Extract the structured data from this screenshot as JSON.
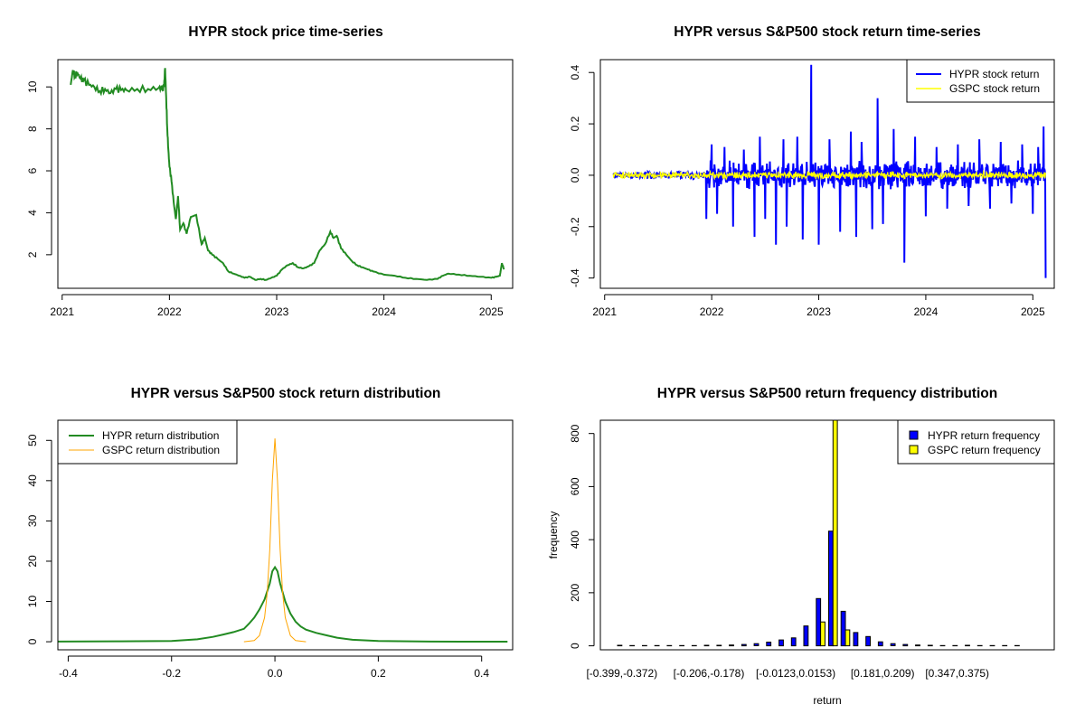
{
  "colors": {
    "hypr_price": "#228B22",
    "hypr_return": "#0000FF",
    "gspc_return": "#FFFF00",
    "hypr_density": "#228B22",
    "gspc_density": "#FFA500",
    "hypr_bar": "#0000FF",
    "gspc_bar": "#FFFF00"
  },
  "chart_data": [
    {
      "id": "price",
      "type": "line",
      "title": "HYPR stock price time-series",
      "xlabel": "",
      "ylabel": "",
      "xlim": [
        2020.96,
        2025.2
      ],
      "ylim": [
        0.4,
        11.3
      ],
      "xticks": [
        2021,
        2022,
        2023,
        2024,
        2025
      ],
      "xtick_labels": [
        "2021",
        "2022",
        "2023",
        "2024",
        "2025"
      ],
      "yticks": [
        2,
        4,
        6,
        8,
        10
      ],
      "ytick_labels": [
        "2",
        "4",
        "6",
        "8",
        "10"
      ],
      "series": [
        {
          "x": [
            2021.08,
            2021.1,
            2021.12,
            2021.14,
            2021.17,
            2021.2,
            2021.25,
            2021.3,
            2021.35,
            2021.4,
            2021.45,
            2021.5,
            2021.55,
            2021.6,
            2021.7,
            2021.8,
            2021.9,
            2021.93,
            2021.95,
            2021.96,
            2021.97,
            2021.98,
            2021.99,
            2022.0,
            2022.02,
            2022.04,
            2022.06,
            2022.08,
            2022.1,
            2022.13,
            2022.16,
            2022.2,
            2022.25,
            2022.3,
            2022.33,
            2022.36,
            2022.4,
            2022.45,
            2022.5,
            2022.55,
            2022.6,
            2022.65,
            2022.7,
            2022.75,
            2022.8,
            2022.85,
            2022.9,
            2022.95,
            2023.0,
            2023.05,
            2023.1,
            2023.15,
            2023.2,
            2023.25,
            2023.3,
            2023.35,
            2023.4,
            2023.45,
            2023.5,
            2023.53,
            2023.56,
            2023.6,
            2023.65,
            2023.7,
            2023.75,
            2023.8,
            2023.85,
            2023.9,
            2024.0,
            2024.1,
            2024.2,
            2024.3,
            2024.4,
            2024.5,
            2024.55,
            2024.6,
            2024.7,
            2024.8,
            2024.9,
            2025.0,
            2025.05,
            2025.08,
            2025.1,
            2025.12
          ],
          "y": [
            10.1,
            10.8,
            10.5,
            10.7,
            10.4,
            10.3,
            10.1,
            10.0,
            9.8,
            9.9,
            9.7,
            9.9,
            9.85,
            9.85,
            9.9,
            9.9,
            9.95,
            9.9,
            10.0,
            10.9,
            9.5,
            8.0,
            7.0,
            6.2,
            5.5,
            4.5,
            3.7,
            4.8,
            3.2,
            3.5,
            3.0,
            3.8,
            3.9,
            2.5,
            2.8,
            2.2,
            2.0,
            1.8,
            1.6,
            1.2,
            1.1,
            1.0,
            0.9,
            0.95,
            0.8,
            0.85,
            0.8,
            0.9,
            1.0,
            1.3,
            1.5,
            1.6,
            1.4,
            1.35,
            1.45,
            1.6,
            2.2,
            2.5,
            3.1,
            2.8,
            2.9,
            2.3,
            2.0,
            1.7,
            1.5,
            1.4,
            1.3,
            1.2,
            1.05,
            1.0,
            0.9,
            0.85,
            0.8,
            0.85,
            1.0,
            1.1,
            1.05,
            1.0,
            0.95,
            0.9,
            0.95,
            1.0,
            1.6,
            1.3
          ]
        }
      ]
    },
    {
      "id": "returns",
      "type": "line",
      "title": "HYPR versus S&P500 stock return time-series",
      "xlabel": "",
      "ylabel": "",
      "xlim": [
        2020.96,
        2025.2
      ],
      "ylim": [
        -0.44,
        0.45
      ],
      "xticks": [
        2021,
        2022,
        2023,
        2024,
        2025
      ],
      "xtick_labels": [
        "2021",
        "2022",
        "2023",
        "2024",
        "2025"
      ],
      "yticks": [
        -0.4,
        -0.2,
        0.0,
        0.2,
        0.4
      ],
      "ytick_labels": [
        "-0.4",
        "-0.2",
        "0.0",
        "0.2",
        "0.4"
      ],
      "legend": {
        "position": "top-right",
        "entries": [
          {
            "label": "HYPR stock return",
            "color": "#0000FF"
          },
          {
            "label": "GSPC stock return",
            "color": "#FFFF00"
          }
        ]
      },
      "spikes": {
        "x": [
          2021.95,
          2022.0,
          2022.05,
          2022.12,
          2022.2,
          2022.3,
          2022.4,
          2022.45,
          2022.5,
          2022.6,
          2022.67,
          2022.7,
          2022.8,
          2022.85,
          2022.93,
          2023.0,
          2023.1,
          2023.2,
          2023.3,
          2023.35,
          2023.4,
          2023.5,
          2023.55,
          2023.6,
          2023.7,
          2023.8,
          2023.9,
          2024.0,
          2024.1,
          2024.2,
          2024.3,
          2024.4,
          2024.5,
          2024.6,
          2024.7,
          2024.8,
          2024.9,
          2025.0,
          2025.05,
          2025.1,
          2025.12
        ],
        "y": [
          -0.17,
          0.12,
          -0.15,
          0.11,
          -0.2,
          0.1,
          -0.24,
          0.15,
          -0.17,
          -0.27,
          0.14,
          -0.2,
          0.15,
          -0.25,
          0.43,
          -0.27,
          0.14,
          -0.22,
          0.17,
          -0.24,
          0.13,
          -0.21,
          0.3,
          -0.19,
          0.18,
          -0.34,
          0.15,
          -0.16,
          0.11,
          -0.13,
          0.12,
          -0.12,
          0.14,
          -0.13,
          0.13,
          -0.11,
          0.12,
          -0.15,
          0.11,
          0.19,
          -0.4
        ]
      },
      "note": "Daily return series drawn as dense noise around 0; HYPR amplitude ~0.01 in 2021, ~0.05 from 2022; GSPC amplitude ~0.01 throughout."
    },
    {
      "id": "density",
      "type": "line",
      "title": "HYPR versus S&P500 stock return distribution",
      "xlabel": "",
      "ylabel": "",
      "xlim": [
        -0.42,
        0.46
      ],
      "ylim": [
        -2,
        55
      ],
      "xticks": [
        -0.4,
        -0.2,
        0.0,
        0.2,
        0.4
      ],
      "xtick_labels": [
        "-0.4",
        "-0.2",
        "0.0",
        "0.2",
        "0.4"
      ],
      "yticks": [
        0,
        10,
        20,
        30,
        40,
        50
      ],
      "ytick_labels": [
        "0",
        "10",
        "20",
        "30",
        "40",
        "50"
      ],
      "legend": {
        "position": "top-left",
        "entries": [
          {
            "label": "HYPR return distribution",
            "color": "#228B22"
          },
          {
            "label": "GSPC return distribution",
            "color": "#FFA500"
          }
        ]
      },
      "series": [
        {
          "name": "HYPR return distribution",
          "x": [
            -0.42,
            -0.3,
            -0.2,
            -0.15,
            -0.12,
            -0.1,
            -0.08,
            -0.06,
            -0.05,
            -0.04,
            -0.03,
            -0.02,
            -0.01,
            -0.005,
            0.0,
            0.005,
            0.01,
            0.02,
            0.03,
            0.04,
            0.05,
            0.06,
            0.08,
            0.1,
            0.12,
            0.15,
            0.2,
            0.3,
            0.45
          ],
          "y": [
            0.05,
            0.1,
            0.2,
            0.6,
            1.2,
            1.8,
            2.4,
            3.2,
            4.5,
            6.0,
            8.0,
            10.5,
            14.5,
            17.5,
            18.5,
            17.5,
            14.5,
            10.0,
            7.0,
            5.0,
            3.8,
            3.0,
            2.2,
            1.6,
            1.0,
            0.5,
            0.2,
            0.05,
            0.02
          ]
        },
        {
          "name": "GSPC return distribution",
          "x": [
            -0.06,
            -0.04,
            -0.03,
            -0.02,
            -0.015,
            -0.01,
            -0.005,
            0.0,
            0.005,
            0.01,
            0.015,
            0.02,
            0.03,
            0.04,
            0.06
          ],
          "y": [
            0.0,
            0.3,
            1.5,
            6.0,
            12.0,
            23.0,
            40.0,
            50.5,
            40.0,
            23.0,
            12.0,
            6.0,
            1.5,
            0.3,
            0.0
          ]
        }
      ]
    },
    {
      "id": "frequency",
      "type": "bar",
      "title": "HYPR versus S&P500 return frequency distribution",
      "xlabel": "return",
      "ylabel": "frequency",
      "ylim": [
        -15,
        850
      ],
      "yticks": [
        0,
        200,
        400,
        600,
        800
      ],
      "ytick_labels": [
        "0",
        "200",
        "400",
        "600",
        "800"
      ],
      "category_tick_labels": [
        "[-0.399,-0.372)",
        "[-0.206,-0.178)",
        "[-0.0123,0.0153)",
        "[0.181,0.209)",
        "[0.347,0.375)"
      ],
      "legend": {
        "position": "top-right",
        "entries": [
          {
            "label": "HYPR return frequency",
            "color": "#0000FF"
          },
          {
            "label": "GSPC return frequency",
            "color": "#FFFF00"
          }
        ]
      },
      "series": [
        {
          "name": "HYPR return frequency",
          "values": [
            2,
            1,
            1,
            1,
            1,
            1,
            1,
            2,
            2,
            3,
            5,
            8,
            14,
            22,
            30,
            75,
            178,
            432,
            130,
            50,
            35,
            15,
            8,
            5,
            3,
            2,
            1,
            1,
            2,
            1,
            1,
            1,
            1,
            0
          ]
        },
        {
          "name": "GSPC return frequency",
          "values": [
            0,
            0,
            0,
            0,
            0,
            0,
            0,
            0,
            0,
            0,
            0,
            0,
            0,
            0,
            0,
            0,
            90,
            900,
            60,
            0,
            0,
            0,
            0,
            0,
            0,
            0,
            0,
            0,
            0,
            0,
            0,
            0,
            0,
            0
          ]
        }
      ]
    }
  ]
}
